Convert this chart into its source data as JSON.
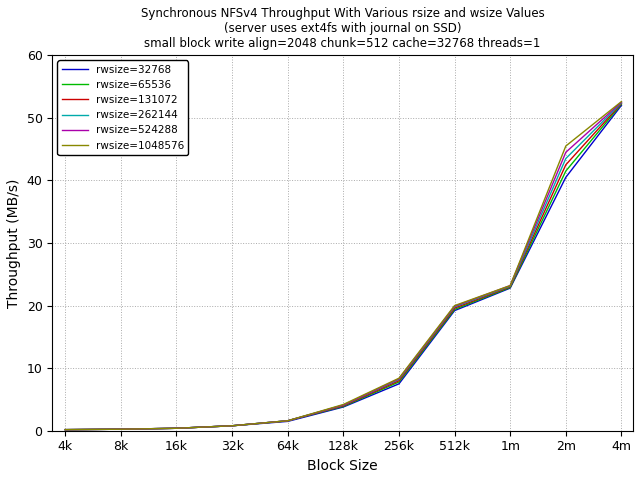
{
  "title_line1": "Synchronous NFSv4 Throughput With Various rsize and wsize Values",
  "title_line2": "(server uses ext4fs with journal on SSD)",
  "title_line3": "small block write align=2048 chunk=512 cache=32768 threads=1",
  "xlabel": "Block Size",
  "ylabel": "Throughput (MB/s)",
  "ylim": [
    0,
    60
  ],
  "series": [
    {
      "label": "rwsize=32768",
      "color": "#0000cc"
    },
    {
      "label": "rwsize=65536",
      "color": "#00bb00"
    },
    {
      "label": "rwsize=131072",
      "color": "#cc0000"
    },
    {
      "label": "rwsize=262144",
      "color": "#00aaaa"
    },
    {
      "label": "rwsize=524288",
      "color": "#aa00aa"
    },
    {
      "label": "rwsize=1048576",
      "color": "#888800"
    }
  ],
  "x_values": [
    4096,
    8192,
    16384,
    32768,
    65536,
    131072,
    262144,
    524288,
    1048576,
    2097152,
    4194304
  ],
  "y_data": [
    [
      0.18,
      0.25,
      0.4,
      0.8,
      1.5,
      3.8,
      7.5,
      19.2,
      22.8,
      40.5,
      52.0
    ],
    [
      0.18,
      0.25,
      0.4,
      0.8,
      1.6,
      3.9,
      7.8,
      19.4,
      22.9,
      41.5,
      52.2
    ],
    [
      0.18,
      0.25,
      0.4,
      0.8,
      1.6,
      4.0,
      8.0,
      19.6,
      23.0,
      42.5,
      52.3
    ],
    [
      0.18,
      0.25,
      0.4,
      0.8,
      1.6,
      4.1,
      8.2,
      19.8,
      23.1,
      43.5,
      52.4
    ],
    [
      0.18,
      0.25,
      0.4,
      0.8,
      1.6,
      4.1,
      8.3,
      19.9,
      23.2,
      44.5,
      52.5
    ],
    [
      0.18,
      0.25,
      0.4,
      0.8,
      1.6,
      4.2,
      8.4,
      20.0,
      23.2,
      45.5,
      52.6
    ]
  ],
  "xtick_labels": [
    "4k",
    "8k",
    "16k",
    "32k",
    "64k",
    "128k",
    "256k",
    "512k",
    "1m",
    "2m",
    "4m"
  ],
  "ytick_values": [
    0,
    10,
    20,
    30,
    40,
    50,
    60
  ],
  "background_color": "#ffffff",
  "grid_color": "#aaaaaa"
}
